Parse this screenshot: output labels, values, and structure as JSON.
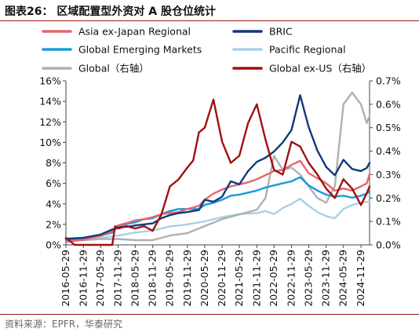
{
  "title": "图表26：  区域配置型外资对 A 股仓位统计",
  "source": "资料来源：EPFR，华泰研究",
  "chart_data": {
    "type": "line",
    "x_tick_labels": [
      "2016-05-29",
      "2016-11-29",
      "2017-05-29",
      "2017-11-29",
      "2018-05-29",
      "2018-11-29",
      "2019-05-29",
      "2019-11-29",
      "2020-05-29",
      "2020-11-29",
      "2021-05-29",
      "2021-11-29",
      "2022-05-29",
      "2022-11-29",
      "2023-05-29",
      "2023-11-29",
      "2024-05-29",
      "2024-11-29"
    ],
    "x_range": [
      "2016-05-29",
      "2025-02-28"
    ],
    "y_left": {
      "ticks": [
        "0%",
        "2%",
        "4%",
        "6%",
        "8%",
        "10%",
        "12%",
        "14%",
        "16%"
      ],
      "range": [
        0,
        16
      ]
    },
    "y_right": {
      "ticks": [
        "0.0%",
        "0.1%",
        "0.2%",
        "0.3%",
        "0.4%",
        "0.5%",
        "0.6%",
        "0.7%"
      ],
      "range": [
        0,
        0.7
      ]
    },
    "legend_position": "top",
    "series": [
      {
        "name": "Asia ex-Japan Regional",
        "color": "#e8646a",
        "axis": "left",
        "points": [
          [
            "2016-05-29",
            0.3
          ],
          [
            "2016-11-29",
            0.5
          ],
          [
            "2017-05-29",
            0.9
          ],
          [
            "2017-09-29",
            1.3
          ],
          [
            "2017-11-29",
            1.9
          ],
          [
            "2018-03-29",
            2.2
          ],
          [
            "2018-05-29",
            2.4
          ],
          [
            "2018-08-29",
            2.5
          ],
          [
            "2018-11-29",
            2.7
          ],
          [
            "2019-02-28",
            3.0
          ],
          [
            "2019-05-29",
            3.1
          ],
          [
            "2019-08-29",
            3.2
          ],
          [
            "2019-11-29",
            3.5
          ],
          [
            "2020-03-29",
            3.8
          ],
          [
            "2020-05-29",
            4.4
          ],
          [
            "2020-08-29",
            5.0
          ],
          [
            "2020-11-29",
            5.4
          ],
          [
            "2021-02-28",
            5.7
          ],
          [
            "2021-05-29",
            5.9
          ],
          [
            "2021-08-29",
            6.1
          ],
          [
            "2021-11-29",
            6.4
          ],
          [
            "2022-02-28",
            6.8
          ],
          [
            "2022-05-29",
            7.2
          ],
          [
            "2022-08-29",
            7.3
          ],
          [
            "2022-11-29",
            7.8
          ],
          [
            "2023-02-28",
            8.2
          ],
          [
            "2023-05-29",
            7.0
          ],
          [
            "2023-08-29",
            6.5
          ],
          [
            "2023-11-29",
            6.0
          ],
          [
            "2024-02-28",
            5.3
          ],
          [
            "2024-05-29",
            5.5
          ],
          [
            "2024-08-29",
            5.3
          ],
          [
            "2024-11-29",
            5.7
          ],
          [
            "2025-01-29",
            6.0
          ],
          [
            "2025-02-28",
            6.9
          ]
        ]
      },
      {
        "name": "BRIC",
        "color": "#0f3a7a",
        "axis": "left",
        "points": [
          [
            "2016-05-29",
            0.6
          ],
          [
            "2016-11-29",
            0.7
          ],
          [
            "2017-05-29",
            1.0
          ],
          [
            "2017-09-29",
            1.5
          ],
          [
            "2017-11-29",
            1.7
          ],
          [
            "2018-03-29",
            1.8
          ],
          [
            "2018-05-29",
            1.9
          ],
          [
            "2018-08-29",
            2.0
          ],
          [
            "2018-11-29",
            2.1
          ],
          [
            "2019-02-28",
            2.6
          ],
          [
            "2019-05-29",
            2.9
          ],
          [
            "2019-08-29",
            3.1
          ],
          [
            "2019-11-29",
            3.2
          ],
          [
            "2020-03-29",
            3.4
          ],
          [
            "2020-05-29",
            4.4
          ],
          [
            "2020-08-29",
            4.2
          ],
          [
            "2020-11-29",
            4.7
          ],
          [
            "2021-02-28",
            6.2
          ],
          [
            "2021-05-29",
            5.9
          ],
          [
            "2021-08-29",
            7.2
          ],
          [
            "2021-11-29",
            8.1
          ],
          [
            "2022-02-28",
            8.5
          ],
          [
            "2022-05-29",
            9.1
          ],
          [
            "2022-08-29",
            10.0
          ],
          [
            "2022-11-29",
            11.2
          ],
          [
            "2023-02-28",
            14.6
          ],
          [
            "2023-05-29",
            11.5
          ],
          [
            "2023-08-29",
            9.2
          ],
          [
            "2023-11-29",
            7.6
          ],
          [
            "2024-02-28",
            6.8
          ],
          [
            "2024-05-29",
            8.3
          ],
          [
            "2024-08-29",
            7.4
          ],
          [
            "2024-11-29",
            7.2
          ],
          [
            "2025-01-29",
            7.5
          ],
          [
            "2025-02-28",
            8.0
          ]
        ]
      },
      {
        "name": "Global Emerging Markets",
        "color": "#1a9bd7",
        "axis": "left",
        "points": [
          [
            "2016-05-29",
            0.5
          ],
          [
            "2016-11-29",
            0.6
          ],
          [
            "2017-05-29",
            0.9
          ],
          [
            "2017-09-29",
            1.2
          ],
          [
            "2017-11-29",
            1.8
          ],
          [
            "2018-03-29",
            2.1
          ],
          [
            "2018-05-29",
            2.2
          ],
          [
            "2018-08-29",
            2.5
          ],
          [
            "2018-11-29",
            2.6
          ],
          [
            "2019-02-28",
            3.0
          ],
          [
            "2019-05-29",
            3.3
          ],
          [
            "2019-08-29",
            3.5
          ],
          [
            "2019-11-29",
            3.5
          ],
          [
            "2020-03-29",
            3.5
          ],
          [
            "2020-05-29",
            3.9
          ],
          [
            "2020-08-29",
            4.1
          ],
          [
            "2020-11-29",
            4.4
          ],
          [
            "2021-02-28",
            4.8
          ],
          [
            "2021-05-29",
            4.9
          ],
          [
            "2021-08-29",
            5.1
          ],
          [
            "2021-11-29",
            5.3
          ],
          [
            "2022-02-28",
            5.6
          ],
          [
            "2022-05-29",
            5.8
          ],
          [
            "2022-08-29",
            6.0
          ],
          [
            "2022-11-29",
            6.2
          ],
          [
            "2023-02-28",
            6.6
          ],
          [
            "2023-05-29",
            5.8
          ],
          [
            "2023-08-29",
            5.3
          ],
          [
            "2023-11-29",
            4.9
          ],
          [
            "2024-02-28",
            4.7
          ],
          [
            "2024-05-29",
            4.8
          ],
          [
            "2024-08-29",
            4.6
          ],
          [
            "2024-11-29",
            4.8
          ],
          [
            "2025-01-29",
            5.0
          ],
          [
            "2025-02-28",
            5.2
          ]
        ]
      },
      {
        "name": "Pacific Regional",
        "color": "#a8d0e8",
        "axis": "left",
        "points": [
          [
            "2016-05-29",
            0.5
          ],
          [
            "2016-11-29",
            0.6
          ],
          [
            "2017-05-29",
            0.7
          ],
          [
            "2017-11-29",
            0.9
          ],
          [
            "2018-05-29",
            1.2
          ],
          [
            "2018-11-29",
            1.4
          ],
          [
            "2019-05-29",
            1.8
          ],
          [
            "2019-11-29",
            2.0
          ],
          [
            "2020-05-29",
            2.3
          ],
          [
            "2020-11-29",
            2.7
          ],
          [
            "2021-05-29",
            3.0
          ],
          [
            "2021-11-29",
            3.1
          ],
          [
            "2022-02-28",
            3.3
          ],
          [
            "2022-05-29",
            3.0
          ],
          [
            "2022-08-29",
            3.6
          ],
          [
            "2022-11-29",
            4.0
          ],
          [
            "2023-02-28",
            4.5
          ],
          [
            "2023-05-29",
            3.8
          ],
          [
            "2023-08-29",
            3.2
          ],
          [
            "2023-11-29",
            2.8
          ],
          [
            "2024-02-28",
            2.6
          ],
          [
            "2024-05-29",
            3.5
          ],
          [
            "2024-08-29",
            3.9
          ],
          [
            "2024-11-29",
            4.1
          ],
          [
            "2025-01-29",
            4.2
          ],
          [
            "2025-02-28",
            4.2
          ]
        ]
      },
      {
        "name": "Global（右轴）",
        "color": "#b0b0b0",
        "axis": "right",
        "points": [
          [
            "2016-05-29",
            0.02
          ],
          [
            "2016-11-29",
            0.02
          ],
          [
            "2017-05-29",
            0.025
          ],
          [
            "2017-11-29",
            0.025
          ],
          [
            "2018-05-29",
            0.02
          ],
          [
            "2018-11-29",
            0.02
          ],
          [
            "2019-05-29",
            0.04
          ],
          [
            "2019-11-29",
            0.05
          ],
          [
            "2020-05-29",
            0.08
          ],
          [
            "2020-11-29",
            0.11
          ],
          [
            "2021-05-29",
            0.13
          ],
          [
            "2021-11-29",
            0.15
          ],
          [
            "2022-02-28",
            0.2
          ],
          [
            "2022-05-29",
            0.38
          ],
          [
            "2022-08-29",
            0.32
          ],
          [
            "2022-11-29",
            0.33
          ],
          [
            "2023-02-28",
            0.3
          ],
          [
            "2023-05-29",
            0.25
          ],
          [
            "2023-08-29",
            0.2
          ],
          [
            "2023-11-29",
            0.18
          ],
          [
            "2024-02-28",
            0.25
          ],
          [
            "2024-05-29",
            0.6
          ],
          [
            "2024-08-29",
            0.65
          ],
          [
            "2024-11-29",
            0.6
          ],
          [
            "2025-01-29",
            0.52
          ],
          [
            "2025-02-28",
            0.55
          ]
        ]
      },
      {
        "name": "Global ex-US（右轴）",
        "color": "#a01010",
        "axis": "right",
        "points": [
          [
            "2016-05-29",
            0.03
          ],
          [
            "2016-08-29",
            0.0
          ],
          [
            "2016-11-29",
            0.0
          ],
          [
            "2017-05-29",
            0.0
          ],
          [
            "2017-09-29",
            0.0
          ],
          [
            "2017-10-29",
            0.08
          ],
          [
            "2017-11-29",
            0.07
          ],
          [
            "2018-02-28",
            0.08
          ],
          [
            "2018-05-29",
            0.07
          ],
          [
            "2018-08-29",
            0.08
          ],
          [
            "2018-11-29",
            0.06
          ],
          [
            "2019-02-28",
            0.13
          ],
          [
            "2019-05-29",
            0.25
          ],
          [
            "2019-08-29",
            0.28
          ],
          [
            "2019-11-29",
            0.33
          ],
          [
            "2020-01-29",
            0.36
          ],
          [
            "2020-03-29",
            0.48
          ],
          [
            "2020-05-29",
            0.5
          ],
          [
            "2020-08-29",
            0.62
          ],
          [
            "2020-11-29",
            0.44
          ],
          [
            "2021-02-28",
            0.35
          ],
          [
            "2021-05-29",
            0.38
          ],
          [
            "2021-08-29",
            0.52
          ],
          [
            "2021-11-29",
            0.6
          ],
          [
            "2022-02-28",
            0.45
          ],
          [
            "2022-05-29",
            0.32
          ],
          [
            "2022-08-29",
            0.3
          ],
          [
            "2022-11-29",
            0.44
          ],
          [
            "2023-02-28",
            0.42
          ],
          [
            "2023-05-29",
            0.35
          ],
          [
            "2023-08-29",
            0.3
          ],
          [
            "2023-11-29",
            0.24
          ],
          [
            "2024-02-28",
            0.2
          ],
          [
            "2024-05-29",
            0.28
          ],
          [
            "2024-08-29",
            0.24
          ],
          [
            "2024-11-29",
            0.17
          ],
          [
            "2025-01-29",
            0.22
          ],
          [
            "2025-02-28",
            0.25
          ]
        ]
      }
    ]
  }
}
